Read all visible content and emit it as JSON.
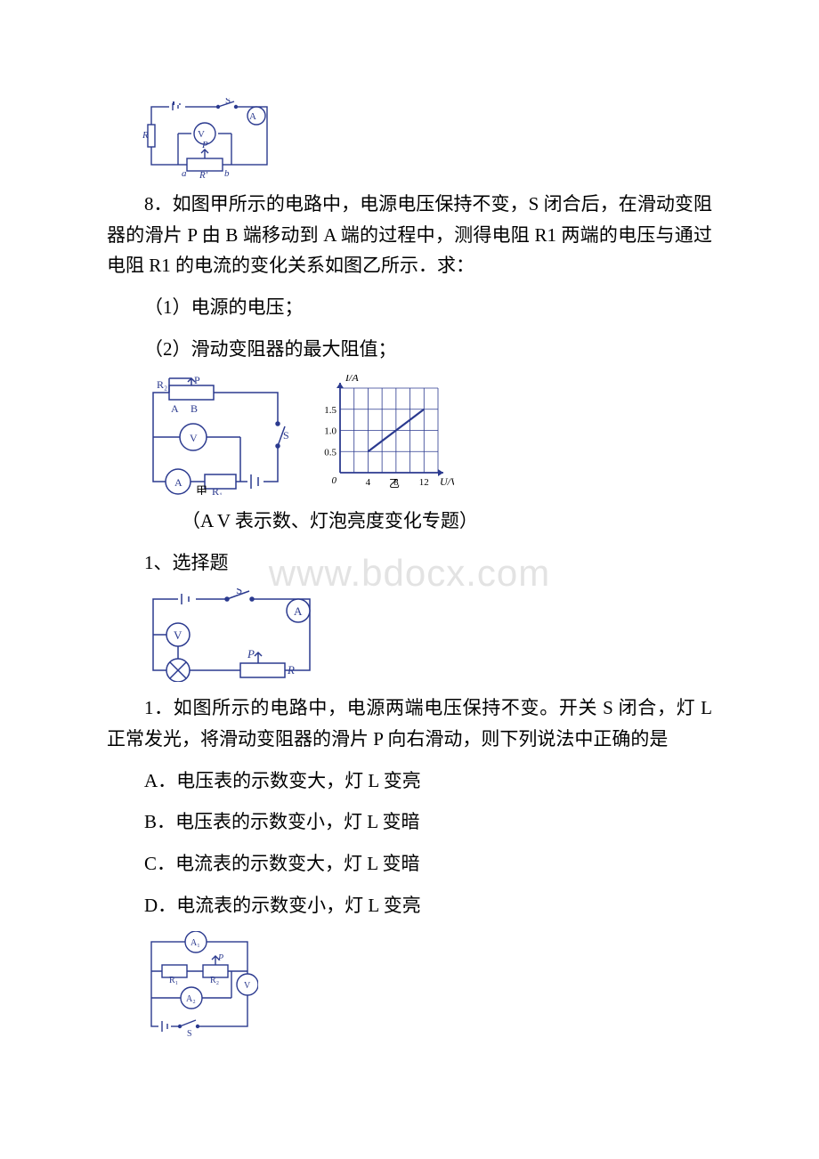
{
  "watermark": "www.bdocx.com",
  "stroke": "#2b3a8f",
  "stroke_light": "#5a68b0",
  "text_color": "#000000",
  "q8": {
    "text": "8．如图甲所示的电路中，电源电压保持不变，S 闭合后，在滑动变阻器的滑片 P 由 B 端移动到 A 端的过程中，测得电阻 R1 两端的电压与通过电阻 R1 的电流的变化关系如图乙所示．求：",
    "sub1": "（1）电源的电压；",
    "sub2": "（2）滑动变阻器的最大阻值；",
    "circuit_top": {
      "labels": {
        "R": "R",
        "V": "V",
        "A": "A",
        "S": "S",
        "P": "P",
        "a": "a",
        "b": "b",
        "Rp": "R'"
      }
    },
    "circuit_jia": {
      "labels": {
        "R2": "R₂",
        "P": "P",
        "A_lbl": "A",
        "B_lbl": "B",
        "V": "V",
        "S": "S",
        "Amp": "A",
        "R1": "R₁",
        "jia": "甲"
      }
    },
    "graph": {
      "ylabel": "I/A",
      "xlabel": "U/V",
      "yi": "乙",
      "x_ticks": [
        "4",
        "8",
        "12"
      ],
      "y_ticks": [
        "0.5",
        "1.0",
        "1.5"
      ],
      "origin_label": "0",
      "x_range": [
        0,
        14
      ],
      "y_range": [
        0,
        2
      ],
      "line_points": [
        [
          4,
          0.5
        ],
        [
          12,
          1.5
        ]
      ],
      "grid_color": "#2b3a8f",
      "line_color": "#2b3a8f",
      "bg": "#ffffff"
    }
  },
  "section_title_av": "（A V 表示数、灯泡亮度变化专题）",
  "section_choice": "1、选择题",
  "q1": {
    "text": "1．如图所示的电路中，电源两端电压保持不变。开关 S 闭合，灯 L 正常发光，将滑动变阻器的滑片 P 向右滑动，则下列说法中正确的是",
    "optA": "A．电压表的示数变大，灯 L 变亮",
    "optB": "B．电压表的示数变小，灯 L 变暗",
    "optC": "C．电流表的示数变大，灯 L 变暗",
    "optD": "D．电流表的示数变小，灯 L 变亮",
    "circuit": {
      "labels": {
        "S": "S",
        "A": "A",
        "V": "V",
        "P": "P",
        "R": "R",
        "lamp": "⊗"
      }
    }
  },
  "q_last_circuit": {
    "labels": {
      "A1": "A₁",
      "A2": "A₂",
      "R1": "R₁",
      "R2": "R₂",
      "V": "V",
      "S": "S",
      "P": "P"
    }
  }
}
